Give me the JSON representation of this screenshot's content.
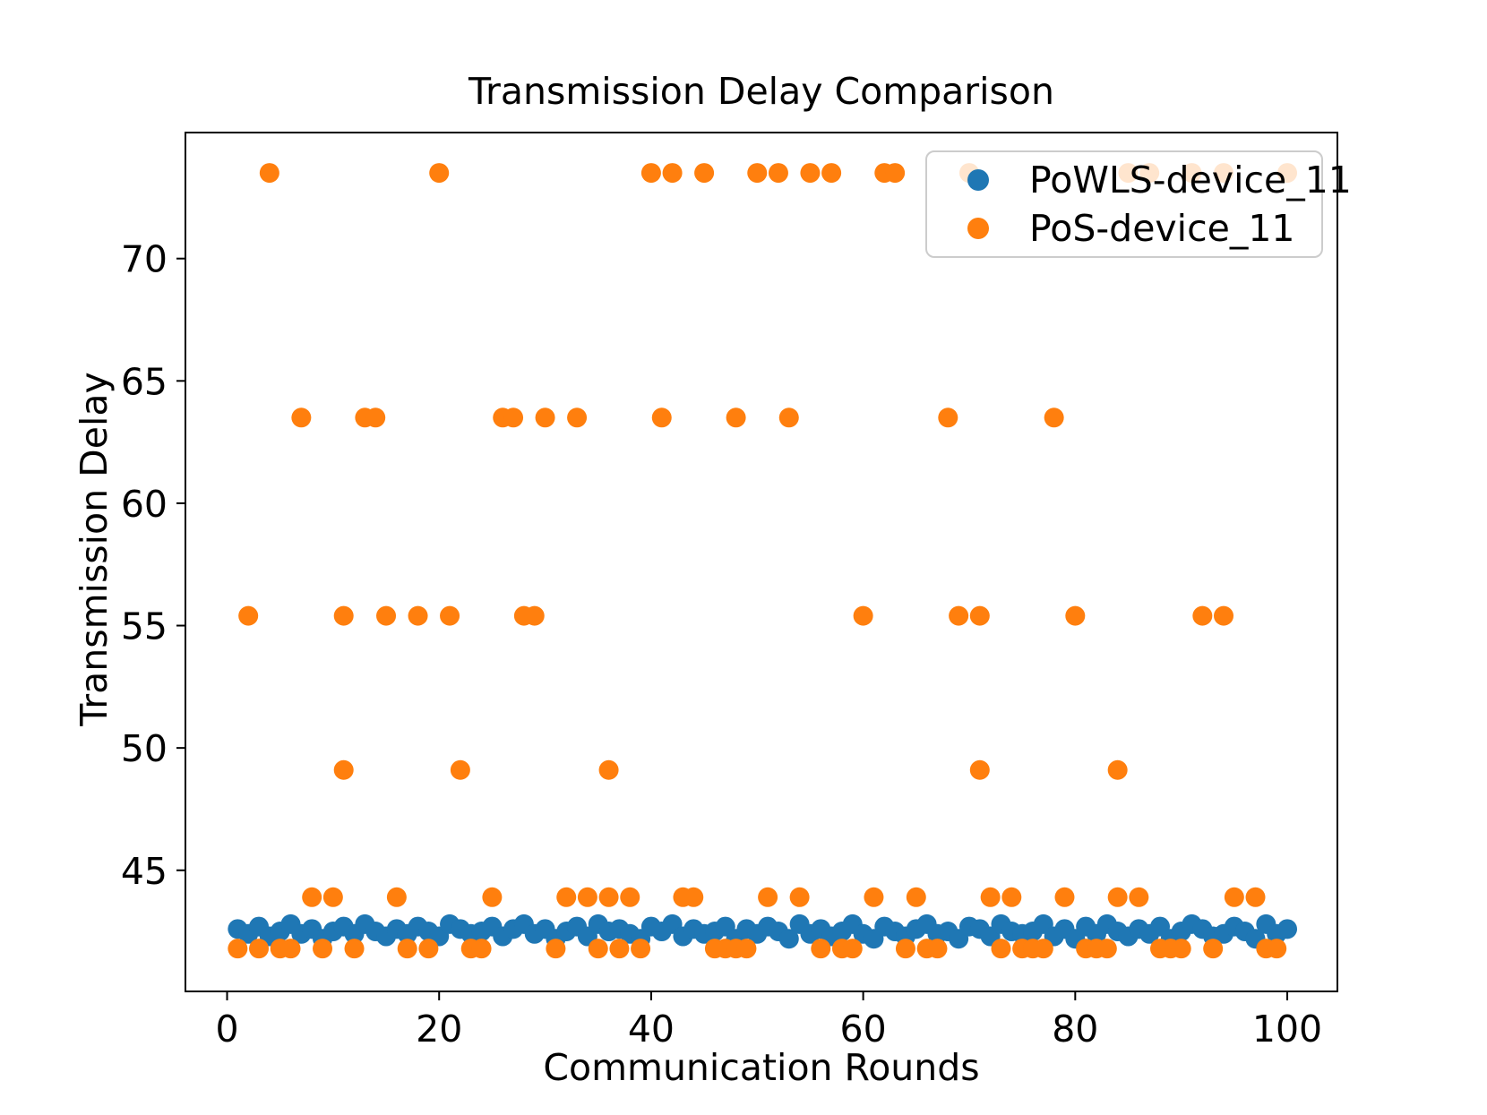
{
  "chart_data": {
    "type": "scatter",
    "title": "Transmission Delay Comparison",
    "xlabel": "Communication Rounds",
    "ylabel": "Transmission Delay",
    "xlim": [
      -3.93,
      104.73
    ],
    "ylim": [
      40.05,
      75.15
    ],
    "xticks": [
      0,
      20,
      40,
      60,
      80,
      100
    ],
    "yticks": [
      45,
      50,
      55,
      60,
      65,
      70
    ],
    "grid": false,
    "legend_position": "upper right",
    "series": [
      {
        "name": "PoWLS-device_11",
        "color": "#1f77b4",
        "marker": "circle",
        "x": [
          1,
          2,
          3,
          4,
          5,
          6,
          7,
          8,
          9,
          10,
          11,
          12,
          13,
          14,
          15,
          16,
          17,
          18,
          19,
          20,
          21,
          22,
          23,
          24,
          25,
          26,
          27,
          28,
          29,
          30,
          31,
          32,
          33,
          34,
          35,
          36,
          37,
          38,
          39,
          40,
          41,
          42,
          43,
          44,
          45,
          46,
          47,
          48,
          49,
          50,
          51,
          52,
          53,
          54,
          55,
          56,
          57,
          58,
          59,
          60,
          61,
          62,
          63,
          64,
          65,
          66,
          67,
          68,
          69,
          70,
          71,
          72,
          73,
          74,
          75,
          76,
          77,
          78,
          79,
          80,
          81,
          82,
          83,
          84,
          85,
          86,
          87,
          88,
          89,
          90,
          91,
          92,
          93,
          94,
          95,
          96,
          97,
          98,
          99,
          100
        ],
        "y": [
          42.6,
          42.4,
          42.7,
          42.3,
          42.5,
          42.8,
          42.4,
          42.6,
          42.2,
          42.5,
          42.7,
          42.4,
          42.8,
          42.5,
          42.3,
          42.6,
          42.4,
          42.7,
          42.5,
          42.3,
          42.8,
          42.6,
          42.4,
          42.5,
          42.7,
          42.3,
          42.6,
          42.8,
          42.4,
          42.6,
          42.2,
          42.5,
          42.7,
          42.3,
          42.8,
          42.5,
          42.6,
          42.4,
          42.2,
          42.7,
          42.5,
          42.8,
          42.3,
          42.6,
          42.4,
          42.5,
          42.7,
          42.2,
          42.6,
          42.4,
          42.7,
          42.5,
          42.2,
          42.8,
          42.4,
          42.6,
          42.3,
          42.5,
          42.8,
          42.4,
          42.2,
          42.7,
          42.5,
          42.3,
          42.6,
          42.8,
          42.4,
          42.5,
          42.2,
          42.7,
          42.6,
          42.3,
          42.8,
          42.5,
          42.4,
          42.5,
          42.8,
          42.3,
          42.6,
          42.2,
          42.7,
          42.4,
          42.8,
          42.5,
          42.3,
          42.6,
          42.4,
          42.7,
          42.2,
          42.5,
          42.8,
          42.6,
          42.3,
          42.4,
          42.7,
          42.5,
          42.2,
          42.8,
          42.4,
          42.6
        ]
      },
      {
        "name": "PoS-device_11",
        "color": "#ff7f0e",
        "marker": "circle",
        "levels": [
          {
            "y": 73.5,
            "x": [
              4,
              20,
              40,
              42,
              45,
              50,
              52,
              55,
              57,
              62,
              63,
              70,
              85,
              87,
              91,
              94,
              100
            ]
          },
          {
            "y": 63.5,
            "x": [
              7,
              13,
              14,
              26,
              27,
              30,
              33,
              41,
              48,
              53,
              68,
              78
            ]
          },
          {
            "y": 55.4,
            "x": [
              2,
              11,
              15,
              18,
              21,
              28,
              29,
              60,
              69,
              71,
              80,
              92,
              94
            ]
          },
          {
            "y": 49.1,
            "x": [
              11,
              22,
              36,
              71,
              84
            ]
          },
          {
            "y": 43.9,
            "x": [
              8,
              10,
              16,
              25,
              32,
              34,
              36,
              38,
              43,
              44,
              51,
              54,
              61,
              65,
              72,
              74,
              79,
              84,
              86,
              95,
              97
            ]
          },
          {
            "y": 41.8,
            "x": [
              1,
              3,
              5,
              6,
              9,
              12,
              17,
              19,
              23,
              24,
              31,
              35,
              37,
              39,
              46,
              47,
              48,
              49,
              56,
              58,
              59,
              64,
              66,
              67,
              73,
              75,
              76,
              77,
              81,
              82,
              83,
              88,
              89,
              90,
              93,
              98,
              99
            ]
          }
        ]
      }
    ]
  },
  "legend": {
    "items": [
      {
        "label": "PoWLS-device_11",
        "color": "#1f77b4"
      },
      {
        "label": "PoS-device_11",
        "color": "#ff7f0e"
      }
    ]
  }
}
